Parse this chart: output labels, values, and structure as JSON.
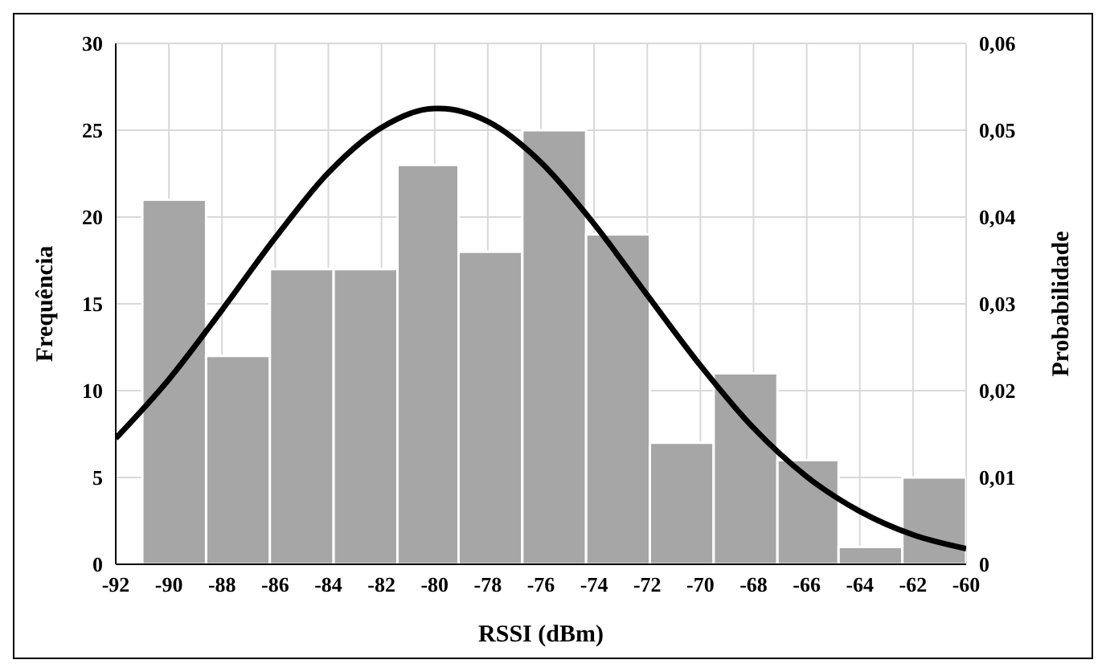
{
  "chart_data": {
    "type": "histogram",
    "xlabel": "RSSI (dBm)",
    "ylabel": "Frequência",
    "y2label": "Probabilidade",
    "bins": [
      -91,
      -88.6,
      -86.2,
      -83.8,
      -81.4,
      -79.1,
      -76.7,
      -74.3,
      -71.9,
      -69.5,
      -67.1,
      -64.8,
      -62.4,
      -60
    ],
    "values": [
      21,
      12,
      17,
      17,
      23,
      18,
      25,
      19,
      7,
      11,
      6,
      1,
      5
    ],
    "color": "#a6a6a6",
    "series": [
      {
        "type": "line",
        "axis": "y2",
        "color": "#000000",
        "x": [
          -92,
          -90,
          -88,
          -86,
          -84,
          -82,
          -80,
          -79.8,
          -78,
          -76,
          -74,
          -72,
          -70,
          -68,
          -66,
          -64,
          -62,
          -60
        ],
        "values": [
          0.0145,
          0.0213,
          0.0293,
          0.0376,
          0.0451,
          0.0503,
          0.0525,
          0.0525,
          0.051,
          0.0463,
          0.0392,
          0.031,
          0.0229,
          0.0157,
          0.0101,
          0.0061,
          0.0034,
          0.0018
        ]
      }
    ],
    "xlim": [
      -92,
      -60
    ],
    "xticks": [
      -92,
      -90,
      -88,
      -86,
      -84,
      -82,
      -80,
      -78,
      -76,
      -74,
      -72,
      -70,
      -68,
      -66,
      -64,
      -62,
      -60
    ],
    "ylim": [
      0,
      30
    ],
    "yticks": [
      0,
      5,
      10,
      15,
      20,
      25,
      30
    ],
    "y2lim": [
      0,
      0.06
    ],
    "y2ticks": [
      {
        "value": 0,
        "label": "0"
      },
      {
        "value": 0.01,
        "label": "0,01"
      },
      {
        "value": 0.02,
        "label": "0,02"
      },
      {
        "value": 0.03,
        "label": "0,03"
      },
      {
        "value": 0.04,
        "label": "0,04"
      },
      {
        "value": 0.05,
        "label": "0,05"
      },
      {
        "value": 0.06,
        "label": "0,06"
      }
    ],
    "grid": true,
    "marker": "none",
    "line_style": "solid"
  }
}
